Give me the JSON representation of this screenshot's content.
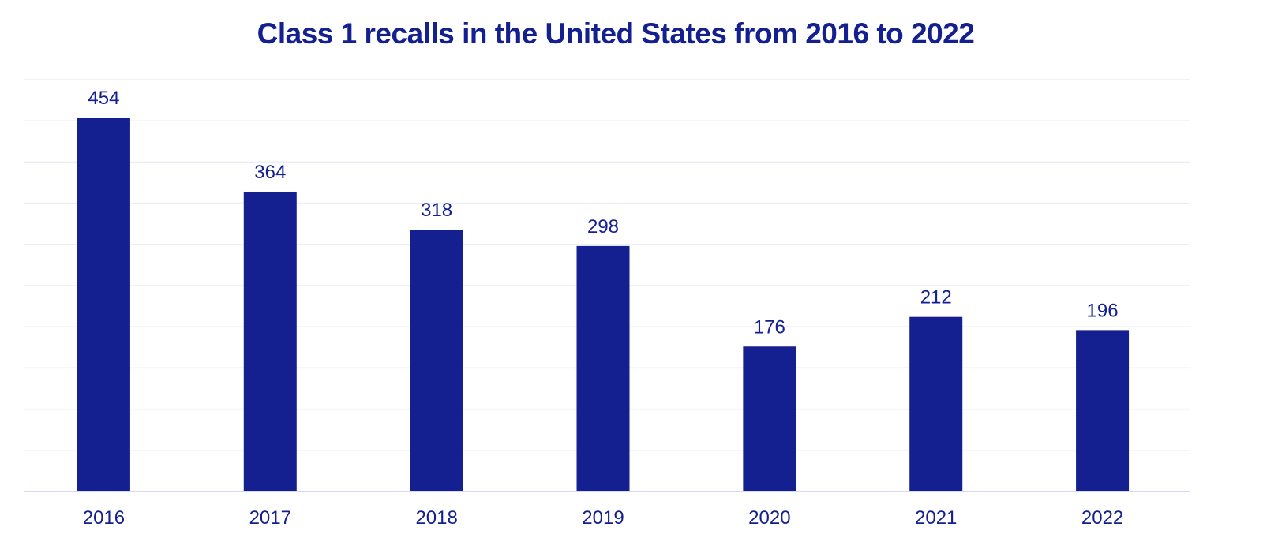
{
  "chart_data": {
    "type": "bar",
    "title": "Class 1 recalls in the United States from 2016 to 2022",
    "xlabel": "",
    "ylabel": "",
    "categories": [
      "2016",
      "2017",
      "2018",
      "2019",
      "2020",
      "2021",
      "2022"
    ],
    "values": [
      454,
      364,
      318,
      298,
      176,
      212,
      196
    ],
    "ylim": [
      0,
      500
    ],
    "grid_step": 50,
    "grid": true,
    "data_labels": true,
    "colors": {
      "bar": "#14208f",
      "text": "#14208f",
      "grid": "#eceef5",
      "axis": "#c9ccf0"
    }
  }
}
